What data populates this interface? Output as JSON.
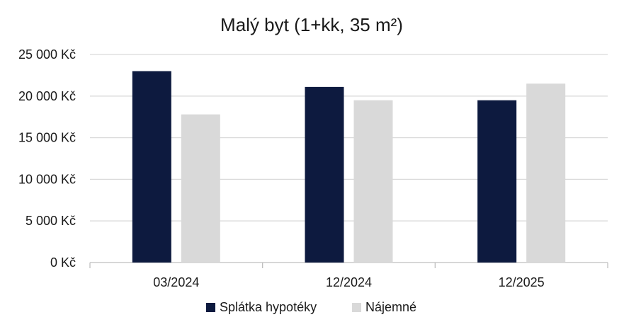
{
  "chart_data": {
    "type": "bar",
    "title": "Malý byt (1+kk, 35 m²)",
    "categories": [
      "03/2024",
      "12/2024",
      "12/2025"
    ],
    "series": [
      {
        "name": "Splátka hypotéky",
        "color": "#0d1a3f",
        "values": [
          23000,
          21100,
          19500
        ]
      },
      {
        "name": "Nájemné",
        "color": "#d9d9d9",
        "values": [
          17800,
          19500,
          21500
        ]
      }
    ],
    "ylim": [
      0,
      25000
    ],
    "yticks": [
      0,
      5000,
      10000,
      15000,
      20000,
      25000
    ],
    "ytick_labels": [
      "0 Kč",
      "5 000 Kč",
      "10 000 Kč",
      "15 000 Kč",
      "20 000 Kč",
      "25 000 Kč"
    ],
    "grid": true,
    "grid_color": "#d9d9d9",
    "legend_position": "bottom"
  }
}
